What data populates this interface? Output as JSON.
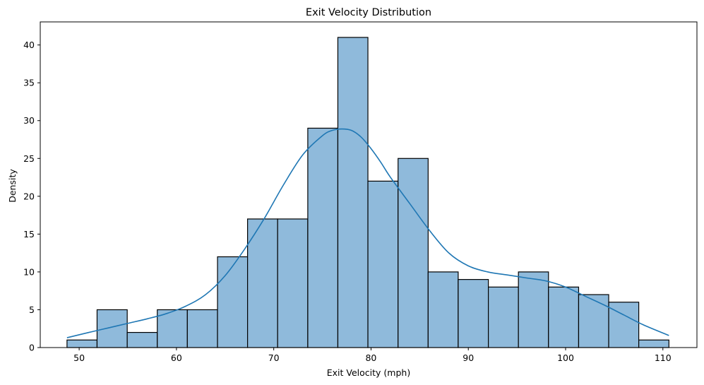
{
  "chart_data": {
    "type": "bar",
    "title": "Exit Velocity Distribution",
    "xlabel": "Exit Velocity (mph)",
    "ylabel": "Density",
    "xlim": [
      46.0,
      113.5
    ],
    "ylim": [
      0,
      43.05
    ],
    "xticks": [
      50,
      60,
      70,
      80,
      90,
      100,
      110
    ],
    "yticks": [
      0,
      5,
      10,
      15,
      20,
      25,
      30,
      35,
      40
    ],
    "grid": false,
    "bins": [
      {
        "start": 48.75,
        "end": 51.84,
        "count": 1
      },
      {
        "start": 51.84,
        "end": 54.94,
        "count": 5
      },
      {
        "start": 54.94,
        "end": 58.03,
        "count": 2
      },
      {
        "start": 58.03,
        "end": 61.12,
        "count": 5
      },
      {
        "start": 61.12,
        "end": 64.22,
        "count": 5
      },
      {
        "start": 64.22,
        "end": 67.31,
        "count": 12
      },
      {
        "start": 67.31,
        "end": 70.4,
        "count": 17
      },
      {
        "start": 70.4,
        "end": 73.5,
        "count": 17
      },
      {
        "start": 73.5,
        "end": 76.59,
        "count": 29
      },
      {
        "start": 76.59,
        "end": 79.68,
        "count": 41
      },
      {
        "start": 79.68,
        "end": 82.78,
        "count": 22
      },
      {
        "start": 82.78,
        "end": 85.87,
        "count": 25
      },
      {
        "start": 85.87,
        "end": 88.96,
        "count": 10
      },
      {
        "start": 88.96,
        "end": 92.06,
        "count": 9
      },
      {
        "start": 92.06,
        "end": 95.15,
        "count": 8
      },
      {
        "start": 95.15,
        "end": 98.24,
        "count": 10
      },
      {
        "start": 98.24,
        "end": 101.34,
        "count": 8
      },
      {
        "start": 101.34,
        "end": 104.43,
        "count": 7
      },
      {
        "start": 104.43,
        "end": 107.52,
        "count": 6
      },
      {
        "start": 107.52,
        "end": 110.62,
        "count": 1
      }
    ],
    "kde": {
      "x": [
        48.75,
        51,
        53,
        55,
        57,
        59,
        61,
        63,
        65,
        67,
        69,
        71,
        73,
        75,
        76,
        77,
        78,
        79,
        80,
        81,
        82,
        84,
        86,
        88,
        90,
        92,
        94,
        96,
        98,
        100,
        102,
        104,
        106,
        108,
        110.62
      ],
      "y": [
        1.3,
        2.0,
        2.6,
        3.2,
        3.8,
        4.5,
        5.5,
        7.0,
        9.5,
        13.0,
        17.0,
        21.5,
        25.5,
        28.0,
        28.7,
        28.9,
        28.7,
        27.8,
        26.3,
        24.5,
        22.5,
        19.0,
        15.5,
        12.5,
        10.8,
        10.0,
        9.6,
        9.2,
        8.8,
        8.0,
        6.8,
        5.6,
        4.3,
        3.0,
        1.6
      ]
    },
    "colors": {
      "bar_fill": "#8fbadb",
      "bar_edge": "#000000",
      "kde_line": "#1f77b4"
    }
  }
}
